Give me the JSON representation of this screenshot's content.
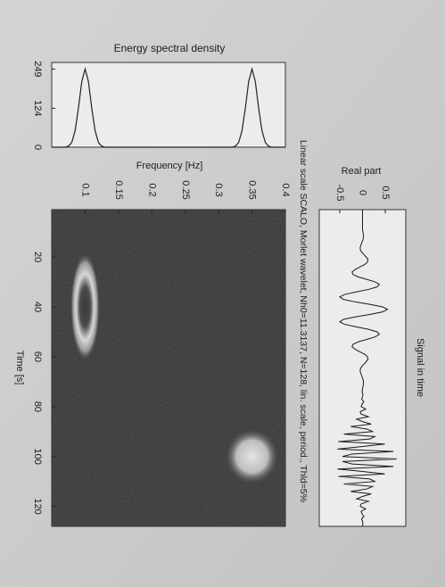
{
  "chart_data": [
    {
      "type": "line",
      "title": "Energy spectral density",
      "x": [
        0.05,
        0.06,
        0.07,
        0.075,
        0.08,
        0.085,
        0.09,
        0.095,
        0.1,
        0.105,
        0.11,
        0.115,
        0.12,
        0.125,
        0.13,
        0.14,
        0.15,
        0.16,
        0.17,
        0.18,
        0.19,
        0.2,
        0.21,
        0.22,
        0.23,
        0.24,
        0.25,
        0.26,
        0.27,
        0.28,
        0.29,
        0.3,
        0.31,
        0.32,
        0.325,
        0.33,
        0.335,
        0.34,
        0.345,
        0.35,
        0.355,
        0.36,
        0.365,
        0.37,
        0.375,
        0.38,
        0.39,
        0.4
      ],
      "values": [
        0,
        0,
        0,
        3,
        15,
        52,
        124,
        209,
        249,
        209,
        124,
        52,
        15,
        3,
        0,
        0,
        0,
        0,
        0,
        0,
        0,
        0,
        0,
        0,
        0,
        0,
        0,
        0,
        0,
        0,
        0,
        0,
        0,
        0,
        3,
        15,
        52,
        124,
        209,
        249,
        209,
        124,
        52,
        15,
        3,
        0,
        0,
        0
      ],
      "color": "#222222",
      "xlim": [
        0.05,
        0.4
      ],
      "ylim": [
        0,
        270
      ],
      "yticks": [
        0,
        124,
        249
      ]
    },
    {
      "type": "image",
      "title": "Linear scale SCALO, Morlet wavelet, Nh0=11.3137, N=128, lin. scale, period., Thld=5%",
      "xlabel": "Time [s]",
      "ylabel": "Frequency [Hz]",
      "xlim": [
        1,
        128
      ],
      "xticks": [
        20,
        40,
        60,
        80,
        100,
        120
      ],
      "ylim": [
        0.05,
        0.4
      ],
      "yticks": [
        0.1,
        0.15,
        0.2,
        0.25,
        0.3,
        0.35,
        0.4
      ],
      "peaks": {
        "x": [
          40,
          100
        ],
        "y": [
          0.1,
          0.35
        ]
      }
    },
    {
      "type": "line",
      "title": "Signal in time",
      "ylabel": "Real part",
      "color": "#1a1a1a",
      "xlim": [
        1,
        128
      ],
      "ylim": [
        -0.95,
        0.95
      ],
      "yticks": [
        -0.5,
        0,
        0.5
      ],
      "x": [
        1,
        2,
        3,
        4,
        5,
        6,
        7,
        8,
        9,
        10,
        11,
        12,
        13,
        14,
        15,
        16,
        17,
        18,
        19,
        20,
        21,
        22,
        23,
        24,
        25,
        26,
        27,
        28,
        29,
        30,
        31,
        32,
        33,
        34,
        35,
        36,
        37,
        38,
        39,
        40,
        41,
        42,
        43,
        44,
        45,
        46,
        47,
        48,
        49,
        50,
        51,
        52,
        53,
        54,
        55,
        56,
        57,
        58,
        59,
        60,
        61,
        62,
        63,
        64,
        65,
        66,
        67,
        68,
        69,
        70,
        71,
        72,
        73,
        74,
        75,
        76,
        77,
        78,
        79,
        80,
        81,
        82,
        83,
        84,
        85,
        86,
        87,
        88,
        89,
        90,
        91,
        92,
        93,
        94,
        95,
        96,
        97,
        98,
        99,
        100,
        101,
        102,
        103,
        104,
        105,
        106,
        107,
        108,
        109,
        110,
        111,
        112,
        113,
        114,
        115,
        116,
        117,
        118,
        119,
        120,
        121,
        122,
        123,
        124,
        125,
        126,
        127,
        128
      ],
      "values": [
        0,
        0,
        0,
        0,
        0,
        0,
        0,
        0,
        0,
        0.01,
        0.02,
        0.02,
        0.01,
        -0.01,
        -0.03,
        -0.05,
        -0.05,
        -0.02,
        0.03,
        0.08,
        0.12,
        0.11,
        0.05,
        -0.06,
        -0.16,
        -0.23,
        -0.21,
        -0.09,
        0.1,
        0.28,
        0.37,
        0.32,
        0.13,
        -0.14,
        -0.39,
        -0.5,
        -0.42,
        -0.16,
        0.17,
        0.44,
        0.55,
        0.44,
        0.17,
        -0.16,
        -0.42,
        -0.5,
        -0.39,
        -0.14,
        0.13,
        0.32,
        0.37,
        0.28,
        0.1,
        -0.09,
        -0.21,
        -0.23,
        -0.16,
        -0.06,
        0.05,
        0.11,
        0.12,
        0.08,
        0.03,
        -0.02,
        -0.05,
        -0.05,
        -0.03,
        -0.01,
        0.01,
        0.02,
        0.02,
        0.01,
        0,
        -0.01,
        0.01,
        0,
        -0.02,
        0.03,
        -0.01,
        -0.03,
        0.07,
        -0.05,
        -0.03,
        0.13,
        -0.13,
        0,
        0.19,
        -0.26,
        0.1,
        0.22,
        -0.41,
        0.27,
        0.16,
        -0.53,
        0.49,
        0,
        -0.55,
        0.68,
        -0.23,
        -0.44,
        0.75,
        -0.44,
        -0.23,
        0.68,
        -0.55,
        0,
        0.49,
        -0.53,
        0.16,
        0.27,
        -0.41,
        0.22,
        0.1,
        -0.26,
        0.19,
        0,
        -0.13,
        0.13,
        -0.03,
        -0.05,
        0.07,
        -0.03,
        -0.01,
        0.03,
        -0.02,
        0,
        0.01,
        -0.01
      ]
    }
  ]
}
